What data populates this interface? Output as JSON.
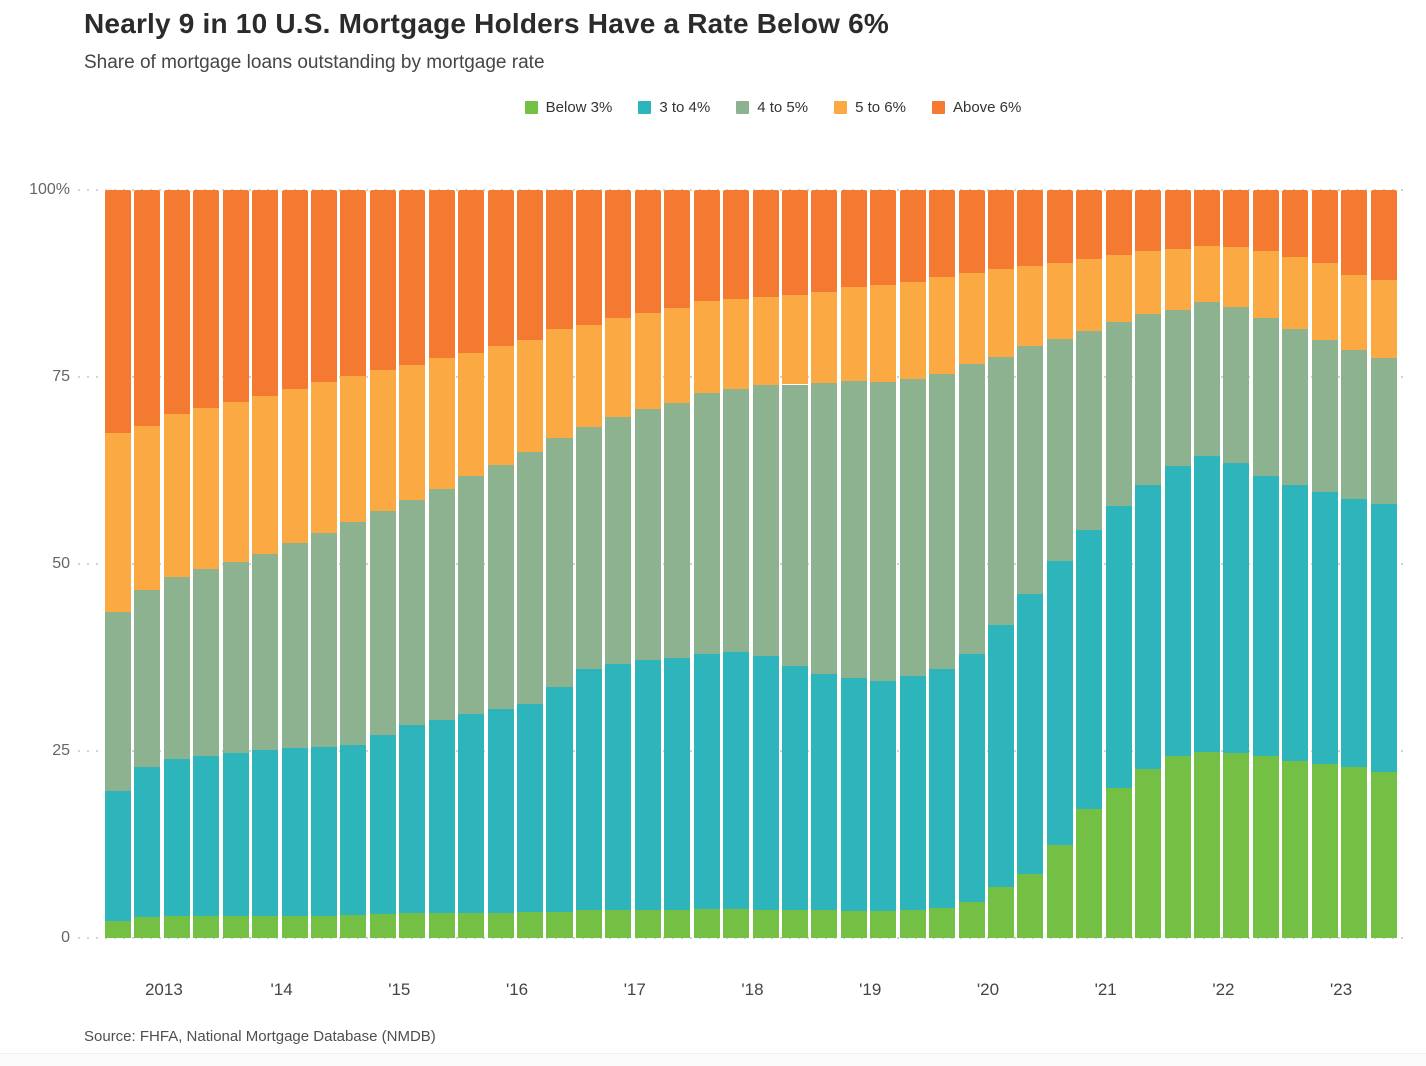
{
  "title": "Nearly 9 in 10 U.S. Mortgage Holders Have a Rate Below 6%",
  "subtitle": "Share of mortgage loans outstanding by mortgage rate",
  "source": "Source: FHFA, National Mortgage Database (NMDB)",
  "chart_data": {
    "type": "bar",
    "stacked": true,
    "unit": "percent",
    "grid": "horizontal dotted",
    "legend_position": "top",
    "ylim": [
      0,
      100
    ],
    "y_tick_values": [
      100,
      75,
      50,
      25,
      0
    ],
    "y_tick_labels": [
      "100%",
      "75",
      "50",
      "25",
      "0"
    ],
    "x_tick_labels": [
      "2013",
      "'14",
      "'15",
      "'16",
      "'17",
      "'18",
      "'19",
      "'20",
      "'21",
      "'22",
      "'23"
    ],
    "categories": [
      "2013 Q1",
      "2013 Q2",
      "2013 Q3",
      "2013 Q4",
      "2014 Q1",
      "2014 Q2",
      "2014 Q3",
      "2014 Q4",
      "2015 Q1",
      "2015 Q2",
      "2015 Q3",
      "2015 Q4",
      "2016 Q1",
      "2016 Q2",
      "2016 Q3",
      "2016 Q4",
      "2017 Q1",
      "2017 Q2",
      "2017 Q3",
      "2017 Q4",
      "2018 Q1",
      "2018 Q2",
      "2018 Q3",
      "2018 Q4",
      "2019 Q1",
      "2019 Q2",
      "2019 Q3",
      "2019 Q4",
      "2020 Q1",
      "2020 Q2",
      "2020 Q3",
      "2020 Q4",
      "2021 Q1",
      "2021 Q2",
      "2021 Q3",
      "2021 Q4",
      "2022 Q1",
      "2022 Q2",
      "2022 Q3",
      "2022 Q4",
      "2023 Q1",
      "2023 Q2",
      "2023 Q3",
      "2023 Q4"
    ],
    "series": [
      {
        "name": "Below 3%",
        "color": "#74c044",
        "values": [
          2.3,
          2.8,
          2.9,
          3.0,
          3.0,
          3.0,
          3.0,
          3.0,
          3.1,
          3.2,
          3.3,
          3.3,
          3.4,
          3.4,
          3.5,
          3.5,
          3.7,
          3.8,
          3.8,
          3.8,
          3.9,
          3.9,
          3.8,
          3.7,
          3.7,
          3.6,
          3.6,
          3.7,
          4.0,
          4.8,
          6.8,
          8.5,
          12.4,
          17.2,
          20.1,
          22.6,
          24.4,
          24.9,
          24.7,
          24.3,
          23.7,
          23.2,
          22.8,
          22.2
        ]
      },
      {
        "name": "3 to 4%",
        "color": "#2eb5bc",
        "values": [
          17.3,
          20.0,
          21.0,
          21.4,
          21.8,
          22.1,
          22.4,
          22.6,
          22.7,
          24.0,
          25.2,
          25.9,
          26.6,
          27.2,
          27.8,
          30.0,
          32.3,
          32.8,
          33.4,
          33.7,
          34.1,
          34.3,
          33.9,
          32.7,
          31.6,
          31.1,
          30.7,
          31.3,
          32.0,
          33.2,
          35.0,
          37.5,
          38.0,
          37.4,
          37.7,
          38.0,
          38.7,
          39.5,
          38.8,
          37.5,
          36.9,
          36.4,
          35.9,
          35.8
        ]
      },
      {
        "name": "4 to 5%",
        "color": "#8cb28f",
        "values": [
          24.0,
          23.7,
          24.4,
          24.9,
          25.5,
          26.3,
          27.4,
          28.6,
          29.8,
          29.9,
          30.0,
          30.8,
          31.8,
          32.7,
          33.7,
          33.4,
          32.3,
          33.1,
          33.5,
          34.0,
          34.8,
          35.2,
          36.2,
          37.6,
          38.9,
          39.8,
          40.1,
          39.8,
          39.4,
          38.7,
          35.9,
          33.1,
          29.7,
          26.6,
          24.6,
          22.8,
          20.9,
          20.6,
          20.8,
          21.1,
          20.8,
          20.4,
          19.9,
          19.6
        ]
      },
      {
        "name": "5 to 6%",
        "color": "#fbaa43",
        "values": [
          23.9,
          22.0,
          21.7,
          21.6,
          21.4,
          21.1,
          20.6,
          20.2,
          19.5,
          18.8,
          18.1,
          17.5,
          16.4,
          15.8,
          15.0,
          14.5,
          13.6,
          13.2,
          12.9,
          12.7,
          12.3,
          12.0,
          11.8,
          12.0,
          12.2,
          12.5,
          12.9,
          12.9,
          13.0,
          12.2,
          11.7,
          10.7,
          10.2,
          9.6,
          8.9,
          8.4,
          8.1,
          7.5,
          8.1,
          9.0,
          9.7,
          10.3,
          10.0,
          10.4
        ]
      },
      {
        "name": "Above 6%",
        "color": "#f47a31",
        "values": [
          32.5,
          31.5,
          30.0,
          29.1,
          28.3,
          27.5,
          26.6,
          25.6,
          24.9,
          24.1,
          23.4,
          22.5,
          21.8,
          20.9,
          20.0,
          18.6,
          18.1,
          17.1,
          16.4,
          15.8,
          14.9,
          14.6,
          14.3,
          14.0,
          13.6,
          13.0,
          12.7,
          12.3,
          11.6,
          11.1,
          10.6,
          10.2,
          9.7,
          9.2,
          8.7,
          8.2,
          7.9,
          7.5,
          7.6,
          8.1,
          8.9,
          9.7,
          11.4,
          12.0
        ]
      }
    ]
  }
}
